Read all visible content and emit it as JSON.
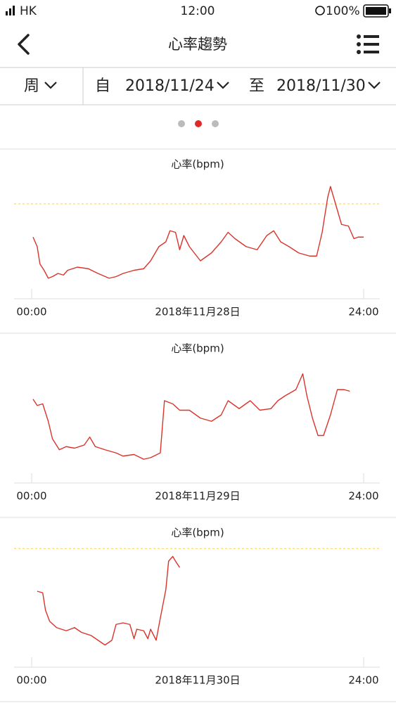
{
  "status_bar": {
    "carrier": "HK",
    "time": "12:00",
    "battery": "100%"
  },
  "header": {
    "title": "心率趨勢"
  },
  "filter": {
    "period": "周",
    "from_label": "自",
    "from_date": "2018/11/24",
    "to_label": "至",
    "to_date": "2018/11/30"
  },
  "chart_data": [
    {
      "type": "line",
      "title": "心率(bpm)",
      "xlabel": "2018年11月28日",
      "x": [
        0.1,
        0.4,
        0.6,
        0.9,
        1.2,
        1.5,
        1.9,
        2.3,
        2.6,
        3.3,
        4.1,
        4.8,
        5.6,
        6.1,
        6.6,
        7.4,
        8.1,
        8.6,
        9.2,
        9.7,
        10.0,
        10.4,
        10.7,
        11.0,
        11.4,
        12.2,
        13.0,
        13.7,
        14.2,
        14.7,
        15.5,
        16.3,
        17.0,
        17.5,
        18.0,
        18.6,
        19.3,
        20.1,
        20.6,
        21.0,
        21.4,
        21.6,
        21.9,
        22.4,
        22.9,
        23.3,
        23.6,
        24.0
      ],
      "series": [
        {
          "color": "#d9342b",
          "values": [
            79,
            73,
            62,
            58,
            53,
            54,
            56,
            55,
            58,
            60,
            59,
            56,
            53,
            54,
            56,
            58,
            59,
            64,
            73,
            76,
            83,
            82,
            71,
            80,
            73,
            64,
            69,
            76,
            82,
            78,
            73,
            71,
            80,
            83,
            76,
            73,
            69,
            67,
            67,
            82,
            104,
            111,
            102,
            87,
            86,
            78,
            79,
            79
          ]
        }
      ],
      "xlim": [
        0,
        24
      ],
      "xticks": [
        {
          "value": 0,
          "label": "00:00"
        },
        {
          "value": 24,
          "label": "24:00"
        }
      ],
      "ylim": [
        40,
        120
      ],
      "reference_line": 100
    },
    {
      "type": "line",
      "title": "心率(bpm)",
      "xlabel": "2018年11月29日",
      "x": [
        0.1,
        0.4,
        0.8,
        1.2,
        1.5,
        2.0,
        2.5,
        3.1,
        3.8,
        4.2,
        4.6,
        5.3,
        6.1,
        6.6,
        7.4,
        8.1,
        8.6,
        9.3,
        9.6,
        10.2,
        10.7,
        11.4,
        12.2,
        13.0,
        13.7,
        14.2,
        15.0,
        15.8,
        16.5,
        17.3,
        17.8,
        18.3,
        19.1,
        19.6,
        19.9,
        20.3,
        20.7,
        21.1,
        21.6,
        22.1,
        22.6,
        23.0
      ],
      "series": [
        {
          "color": "#d9342b",
          "values": [
            93,
            89,
            90,
            79,
            68,
            61,
            63,
            62,
            64,
            69,
            63,
            61,
            59,
            57,
            58,
            55,
            56,
            59,
            92,
            90,
            86,
            86,
            81,
            79,
            83,
            92,
            87,
            92,
            86,
            87,
            92,
            95,
            99,
            109,
            95,
            81,
            70,
            70,
            83,
            99,
            99,
            98
          ]
        }
      ],
      "xlim": [
        0,
        24
      ],
      "xticks": [
        {
          "value": 0,
          "label": "00:00"
        },
        {
          "value": 24,
          "label": "24:00"
        }
      ],
      "ylim": [
        40,
        120
      ]
    },
    {
      "type": "line",
      "title": "心率(bpm)",
      "xlabel": "2018年11月30日",
      "x": [
        0.4,
        0.8,
        1.0,
        1.3,
        1.8,
        2.5,
        3.1,
        3.6,
        4.3,
        4.8,
        5.3,
        5.8,
        6.1,
        6.6,
        7.1,
        7.4,
        7.6,
        8.1,
        8.4,
        8.6,
        9.0,
        9.3,
        9.7,
        9.9,
        10.2,
        10.4,
        10.7
      ],
      "series": [
        {
          "color": "#d9342b",
          "values": [
            73,
            72,
            61,
            54,
            50,
            48,
            50,
            47,
            45,
            42,
            39,
            42,
            52,
            53,
            52,
            43,
            49,
            48,
            43,
            49,
            42,
            56,
            74,
            92,
            95,
            92,
            88
          ]
        }
      ],
      "xlim": [
        0,
        24
      ],
      "xticks": [
        {
          "value": 0,
          "label": "00:00"
        },
        {
          "value": 24,
          "label": "24:00"
        }
      ],
      "ylim": [
        25,
        105
      ],
      "reference_line": 100
    }
  ]
}
